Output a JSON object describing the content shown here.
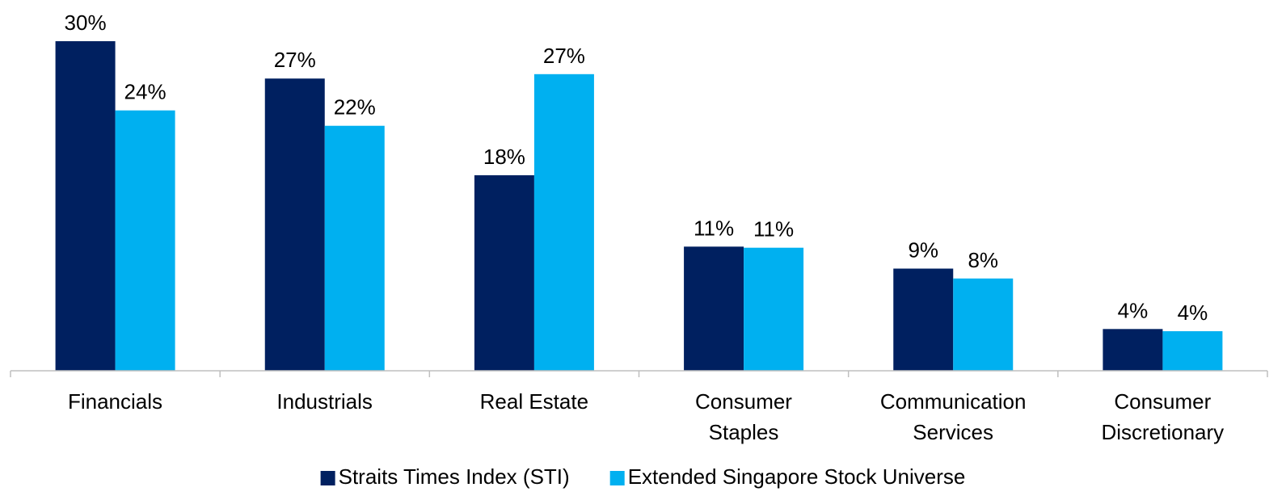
{
  "chart_data": {
    "type": "bar",
    "categories": [
      "Financials",
      "Industrials",
      "Real Estate",
      "Consumer\nStaples",
      "Communication\nServices",
      "Consumer\nDiscretionary"
    ],
    "series": [
      {
        "name": "Straits Times Index (STI)",
        "color": "#002060",
        "values": [
          30,
          26.6,
          17.8,
          11.3,
          9.3,
          3.8
        ],
        "value_labels": [
          "30%",
          "27%",
          "18%",
          "11%",
          "9%",
          "4%"
        ]
      },
      {
        "name": "Extended Singapore Stock Universe",
        "color": "#00b0f0",
        "values": [
          23.7,
          22.3,
          27,
          11.2,
          8.4,
          3.6
        ],
        "value_labels": [
          "24%",
          "22%",
          "27%",
          "11%",
          "8%",
          "4%"
        ]
      }
    ],
    "ylim": [
      0,
      33.75
    ],
    "legend": "bottom"
  }
}
